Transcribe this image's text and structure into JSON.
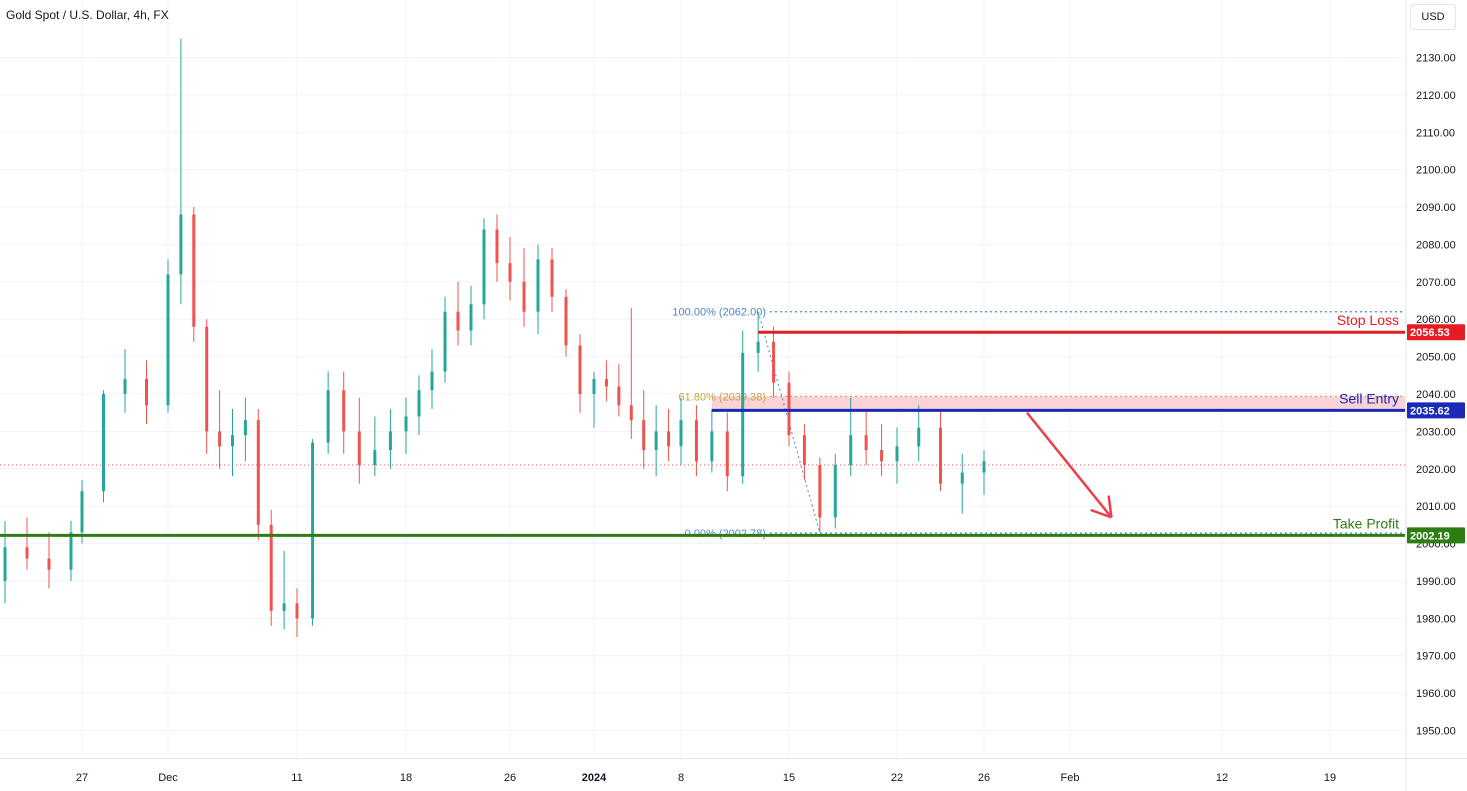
{
  "chart_data": {
    "type": "candlestick",
    "title": "Gold Spot / U.S. Dollar, 4h, FX",
    "currency": "USD",
    "ylim": [
      1940,
      2140
    ],
    "y_ticks": [
      1950,
      1960,
      1970,
      1980,
      1990,
      2000,
      2010,
      2020,
      2030,
      2040,
      2050,
      2060,
      2070,
      2080,
      2090,
      2100,
      2110,
      2120,
      2130
    ],
    "y_tick_labels": [
      "1950.00",
      "1960.00",
      "1970.00",
      "1980.00",
      "1990.00",
      "2000.00",
      "2010.00",
      "2020.00",
      "2030.00",
      "2040.00",
      "2050.00",
      "2060.00",
      "2070.00",
      "2080.00",
      "2090.00",
      "2100.00",
      "2110.00",
      "2120.00",
      "2130.00"
    ],
    "x_ticks": [
      {
        "label": "27",
        "date": "2023-11-27",
        "bold": false
      },
      {
        "label": "Dec",
        "date": "2023-12-01",
        "bold": false
      },
      {
        "label": "11",
        "date": "2023-12-11",
        "bold": false
      },
      {
        "label": "18",
        "date": "2023-12-18",
        "bold": false
      },
      {
        "label": "26",
        "date": "2023-12-26",
        "bold": false
      },
      {
        "label": "2024",
        "date": "2024-01-01",
        "bold": true
      },
      {
        "label": "8",
        "date": "2024-01-08",
        "bold": false
      },
      {
        "label": "15",
        "date": "2024-01-15",
        "bold": false
      },
      {
        "label": "22",
        "date": "2024-01-22",
        "bold": false
      },
      {
        "label": "26",
        "date": "2024-01-26",
        "bold": false
      },
      {
        "label": "Feb",
        "date": "2024-02-01",
        "bold": false
      },
      {
        "label": "12",
        "date": "2024-02-12",
        "bold": false
      },
      {
        "label": "19",
        "date": "2024-02-19",
        "bold": false
      }
    ],
    "candles": [
      {
        "date": "2023-11-20",
        "open": 1990,
        "high": 2006,
        "low": 1984,
        "close": 1999
      },
      {
        "date": "2023-11-22",
        "open": 1999,
        "high": 2007,
        "low": 1993,
        "close": 1996
      },
      {
        "date": "2023-11-24",
        "open": 1996,
        "high": 2003,
        "low": 1988,
        "close": 1993
      },
      {
        "date": "2023-11-26",
        "open": 1993,
        "high": 2006,
        "low": 1990,
        "close": 2003
      },
      {
        "date": "2023-11-27",
        "open": 2003,
        "high": 2017,
        "low": 2000,
        "close": 2014
      },
      {
        "date": "2023-11-28",
        "open": 2014,
        "high": 2041,
        "low": 2011,
        "close": 2040
      },
      {
        "date": "2023-11-29",
        "open": 2040,
        "high": 2052,
        "low": 2035,
        "close": 2044
      },
      {
        "date": "2023-11-30",
        "open": 2044,
        "high": 2049,
        "low": 2032,
        "close": 2037
      },
      {
        "date": "2023-12-01",
        "open": 2037,
        "high": 2076,
        "low": 2035,
        "close": 2072
      },
      {
        "date": "2023-12-02",
        "open": 2072,
        "high": 2135,
        "low": 2064,
        "close": 2088
      },
      {
        "date": "2023-12-03",
        "open": 2088,
        "high": 2090,
        "low": 2054,
        "close": 2058
      },
      {
        "date": "2023-12-04",
        "open": 2058,
        "high": 2060,
        "low": 2024,
        "close": 2030
      },
      {
        "date": "2023-12-05",
        "open": 2030,
        "high": 2041,
        "low": 2020,
        "close": 2026
      },
      {
        "date": "2023-12-06",
        "open": 2026,
        "high": 2036,
        "low": 2018,
        "close": 2029
      },
      {
        "date": "2023-12-07",
        "open": 2029,
        "high": 2039,
        "low": 2022,
        "close": 2033
      },
      {
        "date": "2023-12-08",
        "open": 2033,
        "high": 2036,
        "low": 2001,
        "close": 2005
      },
      {
        "date": "2023-12-09",
        "open": 2005,
        "high": 2009,
        "low": 1978,
        "close": 1982
      },
      {
        "date": "2023-12-10",
        "open": 1982,
        "high": 1998,
        "low": 1977,
        "close": 1984
      },
      {
        "date": "2023-12-11",
        "open": 1984,
        "high": 1988,
        "low": 1975,
        "close": 1980
      },
      {
        "date": "2023-12-12",
        "open": 1980,
        "high": 2028,
        "low": 1978,
        "close": 2027
      },
      {
        "date": "2023-12-13",
        "open": 2027,
        "high": 2046,
        "low": 2024,
        "close": 2041
      },
      {
        "date": "2023-12-14",
        "open": 2041,
        "high": 2046,
        "low": 2024,
        "close": 2030
      },
      {
        "date": "2023-12-15",
        "open": 2030,
        "high": 2039,
        "low": 2016,
        "close": 2021
      },
      {
        "date": "2023-12-16",
        "open": 2021,
        "high": 2034,
        "low": 2018,
        "close": 2025
      },
      {
        "date": "2023-12-17",
        "open": 2025,
        "high": 2036,
        "low": 2020,
        "close": 2030
      },
      {
        "date": "2023-12-18",
        "open": 2030,
        "high": 2039,
        "low": 2024,
        "close": 2034
      },
      {
        "date": "2023-12-19",
        "open": 2034,
        "high": 2045,
        "low": 2029,
        "close": 2041
      },
      {
        "date": "2023-12-20",
        "open": 2041,
        "high": 2052,
        "low": 2036,
        "close": 2046
      },
      {
        "date": "2023-12-21",
        "open": 2046,
        "high": 2066,
        "low": 2043,
        "close": 2062
      },
      {
        "date": "2023-12-22",
        "open": 2062,
        "high": 2070,
        "low": 2053,
        "close": 2057
      },
      {
        "date": "2023-12-23",
        "open": 2057,
        "high": 2069,
        "low": 2053,
        "close": 2064
      },
      {
        "date": "2023-12-24",
        "open": 2064,
        "high": 2087,
        "low": 2060,
        "close": 2084
      },
      {
        "date": "2023-12-25",
        "open": 2084,
        "high": 2088,
        "low": 2070,
        "close": 2075
      },
      {
        "date": "2023-12-26",
        "open": 2075,
        "high": 2082,
        "low": 2065,
        "close": 2070
      },
      {
        "date": "2023-12-27",
        "open": 2070,
        "high": 2079,
        "low": 2058,
        "close": 2062
      },
      {
        "date": "2023-12-28",
        "open": 2062,
        "high": 2080,
        "low": 2056,
        "close": 2076
      },
      {
        "date": "2023-12-29",
        "open": 2076,
        "high": 2079,
        "low": 2062,
        "close": 2066
      },
      {
        "date": "2023-12-30",
        "open": 2066,
        "high": 2068,
        "low": 2050,
        "close": 2053
      },
      {
        "date": "2023-12-31",
        "open": 2053,
        "high": 2056,
        "low": 2035,
        "close": 2040
      },
      {
        "date": "2024-01-01",
        "open": 2040,
        "high": 2046,
        "low": 2031,
        "close": 2044
      },
      {
        "date": "2024-01-02",
        "open": 2044,
        "high": 2049,
        "low": 2038,
        "close": 2042
      },
      {
        "date": "2024-01-03",
        "open": 2042,
        "high": 2048,
        "low": 2034,
        "close": 2037
      },
      {
        "date": "2024-01-04",
        "open": 2037,
        "high": 2063,
        "low": 2028,
        "close": 2033
      },
      {
        "date": "2024-01-05",
        "open": 2033,
        "high": 2041,
        "low": 2020,
        "close": 2025
      },
      {
        "date": "2024-01-06",
        "open": 2025,
        "high": 2037,
        "low": 2018,
        "close": 2030
      },
      {
        "date": "2024-01-07",
        "open": 2030,
        "high": 2036,
        "low": 2022,
        "close": 2026
      },
      {
        "date": "2024-01-08",
        "open": 2026,
        "high": 2039,
        "low": 2021,
        "close": 2033
      },
      {
        "date": "2024-01-09",
        "open": 2033,
        "high": 2037,
        "low": 2018,
        "close": 2022
      },
      {
        "date": "2024-01-10",
        "open": 2022,
        "high": 2036,
        "low": 2019,
        "close": 2030
      },
      {
        "date": "2024-01-11",
        "open": 2030,
        "high": 2035,
        "low": 2014,
        "close": 2018
      },
      {
        "date": "2024-01-12",
        "open": 2018,
        "high": 2057,
        "low": 2016,
        "close": 2051
      },
      {
        "date": "2024-01-13",
        "open": 2051,
        "high": 2062,
        "low": 2046,
        "close": 2054
      },
      {
        "date": "2024-01-14",
        "open": 2054,
        "high": 2058,
        "low": 2039,
        "close": 2043
      },
      {
        "date": "2024-01-15",
        "open": 2043,
        "high": 2046,
        "low": 2026,
        "close": 2029
      },
      {
        "date": "2024-01-16",
        "open": 2029,
        "high": 2032,
        "low": 2017,
        "close": 2021
      },
      {
        "date": "2024-01-17",
        "open": 2021,
        "high": 2023,
        "low": 2003,
        "close": 2007
      },
      {
        "date": "2024-01-18",
        "open": 2007,
        "high": 2024,
        "low": 2004,
        "close": 2021
      },
      {
        "date": "2024-01-19",
        "open": 2021,
        "high": 2039,
        "low": 2018,
        "close": 2029
      },
      {
        "date": "2024-01-20",
        "open": 2029,
        "high": 2036,
        "low": 2021,
        "close": 2025
      },
      {
        "date": "2024-01-21",
        "open": 2025,
        "high": 2032,
        "low": 2018,
        "close": 2022
      },
      {
        "date": "2024-01-22",
        "open": 2022,
        "high": 2031,
        "low": 2016,
        "close": 2026
      },
      {
        "date": "2024-01-23",
        "open": 2026,
        "high": 2037,
        "low": 2022,
        "close": 2031
      },
      {
        "date": "2024-01-24",
        "open": 2031,
        "high": 2036,
        "low": 2014,
        "close": 2016
      },
      {
        "date": "2024-01-25",
        "open": 2016,
        "high": 2024,
        "low": 2008,
        "close": 2019
      },
      {
        "date": "2024-01-26",
        "open": 2019,
        "high": 2025,
        "low": 2013,
        "close": 2022
      }
    ],
    "current_price": 2021,
    "annotations": {
      "stop_loss": {
        "label": "Stop Loss",
        "price": 2056.53,
        "price_label": "2056.53",
        "color": "#e51c23"
      },
      "sell_entry": {
        "label": "Sell Entry",
        "price": 2035.62,
        "price_label": "2035.62",
        "color": "#1a29b8"
      },
      "take_profit": {
        "label": "Take Profit",
        "price": 2002.19,
        "price_label": "2002.19",
        "color": "#2e7d12"
      },
      "fib_levels": [
        {
          "label": "100.00% (2062.00)",
          "price": 2062.0,
          "color": "#4a86c8"
        },
        {
          "label": "61.80% (2039.38)",
          "price": 2039.38,
          "color": "#c8a237"
        },
        {
          "label": "0.00% (2002.78)",
          "price": 2002.78,
          "color": "#4a86c8"
        }
      ],
      "sell_zone": {
        "from": 2035.62,
        "to": 2039.38,
        "color": "#f8c8cc"
      },
      "arrow": {
        "from_date": "2024-01-29",
        "from_price": 2035,
        "to_date": "2024-02-04",
        "to_price": 2007,
        "color": "#e8414d"
      }
    },
    "colors": {
      "up": "#26a69a",
      "down": "#ef5350",
      "grid": "#f0f3fa",
      "text": "#131722",
      "current_line": "#ef5350"
    }
  }
}
